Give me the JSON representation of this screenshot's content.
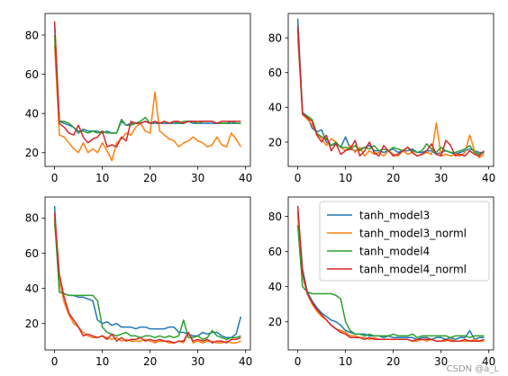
{
  "watermark": "CSDN @a_L",
  "colors": {
    "tanh_model3": "#1f77b4",
    "tanh_model3_norml": "#ff7f0e",
    "tanh_model4": "#2ca02c",
    "tanh_model4_norml": "#d62728"
  },
  "chart_data": [
    {
      "type": "line",
      "x": [
        0,
        1,
        2,
        3,
        4,
        5,
        6,
        7,
        8,
        9,
        10,
        11,
        12,
        13,
        14,
        15,
        16,
        17,
        18,
        19,
        20,
        21,
        22,
        23,
        24,
        25,
        26,
        27,
        28,
        29,
        30,
        31,
        32,
        33,
        34,
        35,
        36,
        37,
        38,
        39
      ],
      "xlim": [
        -2,
        41
      ],
      "ylim": [
        13,
        91
      ],
      "xticks": [
        0,
        10,
        20,
        30,
        40
      ],
      "yticks": [
        20,
        40,
        60,
        80
      ],
      "legend": false,
      "series": [
        {
          "key": "tanh_model3",
          "values": [
            86,
            36,
            35,
            34,
            33,
            30,
            32,
            31,
            31,
            31,
            30,
            31,
            30,
            30,
            36,
            34,
            35,
            35,
            35,
            36,
            35,
            35,
            35,
            35,
            35,
            35,
            35,
            35,
            36,
            35,
            35,
            35,
            35,
            35,
            35,
            35,
            35,
            35,
            35,
            35
          ]
        },
        {
          "key": "tanh_model3_norml",
          "values": [
            75,
            29,
            28,
            25,
            22,
            20,
            25,
            20,
            22,
            20,
            25,
            21,
            16,
            25,
            27,
            30,
            29,
            33,
            35,
            31,
            30,
            51,
            31,
            29,
            27,
            26,
            23,
            25,
            26,
            28,
            26,
            25,
            23,
            24,
            28,
            24,
            23,
            30,
            27,
            23
          ]
        },
        {
          "key": "tanh_model4",
          "values": [
            80,
            36,
            36,
            35,
            33,
            31,
            31,
            30,
            31,
            30,
            31,
            30,
            30,
            30,
            37,
            34,
            34,
            35,
            36,
            38,
            35,
            36,
            35,
            36,
            35,
            36,
            35,
            36,
            36,
            36,
            35,
            36,
            36,
            36,
            35,
            35,
            35,
            36,
            35,
            35
          ]
        },
        {
          "key": "tanh_model4_norml",
          "values": [
            87,
            35,
            33,
            30,
            29,
            34,
            28,
            25,
            27,
            28,
            31,
            23,
            24,
            23,
            28,
            26,
            36,
            35,
            35,
            36,
            35,
            36,
            35,
            36,
            35,
            36,
            36,
            35,
            36,
            36,
            36,
            36,
            36,
            36,
            35,
            36,
            36,
            36,
            36,
            36
          ]
        }
      ]
    },
    {
      "type": "line",
      "x": [
        0,
        1,
        2,
        3,
        4,
        5,
        6,
        7,
        8,
        9,
        10,
        11,
        12,
        13,
        14,
        15,
        16,
        17,
        18,
        19,
        20,
        21,
        22,
        23,
        24,
        25,
        26,
        27,
        28,
        29,
        30,
        31,
        32,
        33,
        34,
        35,
        36,
        37,
        38,
        39
      ],
      "xlim": [
        -2,
        41
      ],
      "ylim": [
        6,
        94
      ],
      "xticks": [
        0,
        10,
        20,
        30,
        40
      ],
      "yticks": [
        20,
        40,
        60,
        80
      ],
      "legend": false,
      "series": [
        {
          "key": "tanh_model3",
          "values": [
            91,
            37,
            35,
            28,
            26,
            27,
            20,
            18,
            19,
            17,
            23,
            16,
            15,
            16,
            17,
            18,
            15,
            15,
            14,
            15,
            16,
            14,
            15,
            15,
            16,
            14,
            14,
            15,
            15,
            13,
            14,
            15,
            14,
            13,
            14,
            15,
            16,
            15,
            14,
            14
          ]
        },
        {
          "key": "tanh_model3_norml",
          "values": [
            80,
            36,
            33,
            30,
            25,
            22,
            18,
            22,
            20,
            17,
            15,
            18,
            14,
            17,
            12,
            15,
            13,
            14,
            12,
            15,
            13,
            12,
            15,
            13,
            14,
            12,
            13,
            14,
            13,
            31,
            12,
            13,
            12,
            13,
            12,
            14,
            24,
            15,
            11,
            13
          ]
        },
        {
          "key": "tanh_model4",
          "values": [
            85,
            36,
            35,
            33,
            25,
            23,
            22,
            18,
            20,
            17,
            17,
            16,
            18,
            15,
            17,
            16,
            18,
            15,
            16,
            15,
            17,
            16,
            15,
            17,
            15,
            14,
            15,
            19,
            16,
            14,
            17,
            15,
            14,
            14,
            15,
            16,
            18,
            14,
            13,
            14
          ]
        },
        {
          "key": "tanh_model4_norml",
          "values": [
            87,
            36,
            34,
            32,
            24,
            20,
            24,
            15,
            19,
            13,
            15,
            16,
            21,
            12,
            15,
            20,
            14,
            12,
            18,
            15,
            12,
            13,
            15,
            17,
            14,
            12,
            13,
            15,
            19,
            13,
            12,
            21,
            18,
            12,
            13,
            12,
            15,
            13,
            12,
            15
          ]
        }
      ]
    },
    {
      "type": "line",
      "x": [
        0,
        1,
        2,
        3,
        4,
        5,
        6,
        7,
        8,
        9,
        10,
        11,
        12,
        13,
        14,
        15,
        16,
        17,
        18,
        19,
        20,
        21,
        22,
        23,
        24,
        25,
        26,
        27,
        28,
        29,
        30,
        31,
        32,
        33,
        34,
        35,
        36,
        37,
        38,
        39
      ],
      "xlim": [
        -2,
        41
      ],
      "ylim": [
        5,
        92
      ],
      "xticks": [
        0,
        10,
        20,
        30,
        40
      ],
      "yticks": [
        20,
        40,
        60,
        80
      ],
      "legend": false,
      "series": [
        {
          "key": "tanh_model3",
          "values": [
            87,
            38,
            37,
            36,
            36,
            35,
            35,
            34,
            33,
            22,
            20,
            21,
            19,
            20,
            18,
            18,
            18,
            17,
            18,
            18,
            17,
            17,
            17,
            17,
            18,
            18,
            15,
            15,
            14,
            13,
            13,
            15,
            14,
            15,
            15,
            13,
            12,
            12,
            14,
            24
          ]
        },
        {
          "key": "tanh_model3_norml",
          "values": [
            77,
            45,
            32,
            25,
            20,
            18,
            15,
            13,
            12,
            12,
            13,
            12,
            11,
            12,
            10,
            11,
            10,
            10,
            10,
            11,
            10,
            9,
            10,
            10,
            9,
            9,
            10,
            9,
            15,
            9,
            10,
            9,
            10,
            10,
            9,
            9,
            10,
            9,
            9,
            10
          ]
        },
        {
          "key": "tanh_model4",
          "values": [
            80,
            38,
            37,
            36,
            36,
            36,
            36,
            36,
            36,
            33,
            18,
            15,
            14,
            13,
            14,
            15,
            13,
            13,
            12,
            13,
            13,
            12,
            13,
            12,
            13,
            12,
            13,
            22,
            12,
            12,
            13,
            11,
            12,
            16,
            13,
            12,
            11,
            12,
            12,
            13
          ]
        },
        {
          "key": "tanh_model4_norml",
          "values": [
            83,
            48,
            35,
            26,
            22,
            18,
            13,
            14,
            13,
            12,
            13,
            11,
            14,
            10,
            12,
            10,
            11,
            11,
            12,
            10,
            11,
            10,
            11,
            10,
            10,
            9,
            10,
            10,
            15,
            10,
            11,
            10,
            11,
            9,
            10,
            10,
            9,
            11,
            11,
            12
          ]
        }
      ]
    },
    {
      "type": "line",
      "x": [
        0,
        1,
        2,
        3,
        4,
        5,
        6,
        7,
        8,
        9,
        10,
        11,
        12,
        13,
        14,
        15,
        16,
        17,
        18,
        19,
        20,
        21,
        22,
        23,
        24,
        25,
        26,
        27,
        28,
        29,
        30,
        31,
        32,
        33,
        34,
        35,
        36,
        37,
        38,
        39
      ],
      "xlim": [
        -2,
        41
      ],
      "ylim": [
        4,
        91
      ],
      "xticks": [
        0,
        10,
        20,
        30,
        40
      ],
      "yticks": [
        20,
        40,
        60,
        80
      ],
      "legend": true,
      "legend_position": "upper right",
      "series": [
        {
          "key": "tanh_model3",
          "name": "tanh_model3",
          "values": [
            83,
            50,
            37,
            32,
            28,
            25,
            23,
            21,
            20,
            18,
            15,
            14,
            13,
            13,
            13,
            12,
            12,
            12,
            11,
            12,
            11,
            11,
            11,
            11,
            11,
            10,
            11,
            11,
            10,
            11,
            11,
            10,
            11,
            10,
            11,
            11,
            15,
            10,
            11,
            11
          ]
        },
        {
          "key": "tanh_model3_norml",
          "name": "tanh_model3_norml",
          "values": [
            80,
            46,
            36,
            30,
            26,
            23,
            21,
            18,
            16,
            15,
            14,
            12,
            12,
            11,
            11,
            10,
            11,
            10,
            10,
            10,
            10,
            10,
            10,
            10,
            9,
            9,
            10,
            9,
            10,
            9,
            9,
            9,
            10,
            9,
            9,
            9,
            9,
            10,
            9,
            9
          ]
        },
        {
          "key": "tanh_model4",
          "name": "tanh_model4",
          "values": [
            75,
            40,
            37,
            36,
            36,
            36,
            36,
            36,
            35,
            33,
            20,
            15,
            13,
            13,
            12,
            13,
            12,
            12,
            12,
            12,
            13,
            12,
            12,
            12,
            13,
            11,
            12,
            12,
            12,
            12,
            12,
            12,
            11,
            12,
            12,
            12,
            11,
            12,
            12,
            12
          ]
        },
        {
          "key": "tanh_model4_norml",
          "name": "tanh_model4_norml",
          "values": [
            86,
            48,
            36,
            31,
            27,
            24,
            21,
            18,
            16,
            14,
            13,
            11,
            11,
            11,
            10,
            11,
            10,
            10,
            10,
            10,
            10,
            10,
            10,
            10,
            9,
            10,
            10,
            10,
            10,
            9,
            9,
            10,
            9,
            9,
            9,
            10,
            9,
            9,
            9,
            10
          ]
        }
      ]
    }
  ]
}
